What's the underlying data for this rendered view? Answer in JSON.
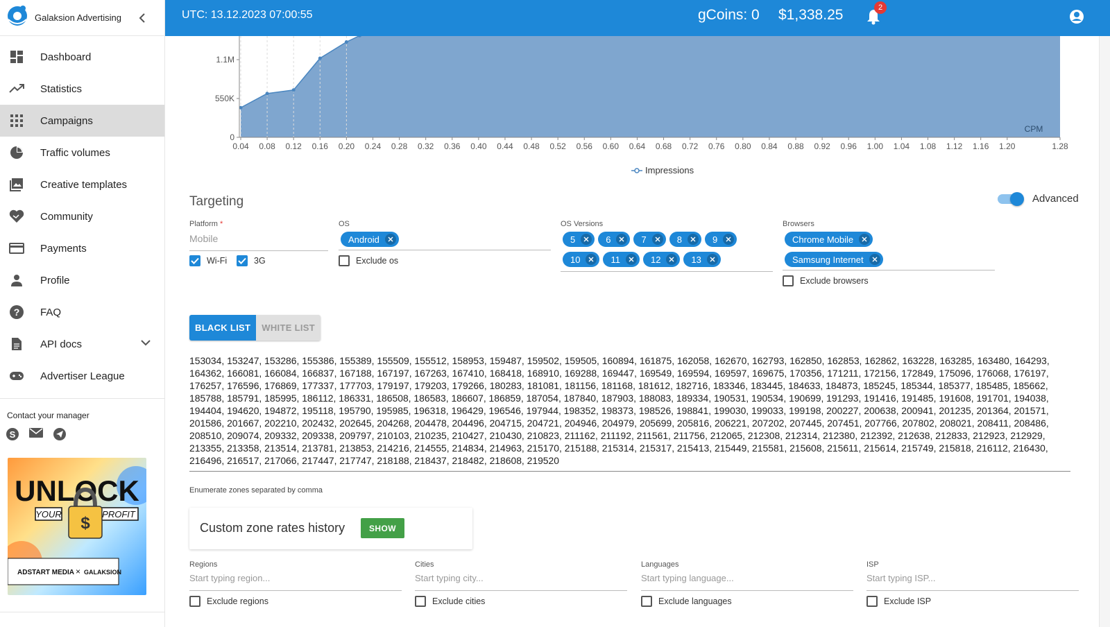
{
  "app": {
    "brand": "Galaksion Advertising"
  },
  "header": {
    "utc": "UTC: 13.12.2023 07:00:55",
    "coins": "gCoins: 0",
    "balance": "$1,338.25",
    "notifications": "2"
  },
  "nav": [
    {
      "label": "Dashboard",
      "icon": "dashboard-icon"
    },
    {
      "label": "Statistics",
      "icon": "trending-up-icon"
    },
    {
      "label": "Campaigns",
      "icon": "apps-grid-icon",
      "active": true
    },
    {
      "label": "Traffic volumes",
      "icon": "pie-chart-icon"
    },
    {
      "label": "Creative templates",
      "icon": "image-icon"
    },
    {
      "label": "Community",
      "icon": "handshake-icon"
    },
    {
      "label": "Payments",
      "icon": "credit-card-icon"
    },
    {
      "label": "Profile",
      "icon": "person-icon"
    },
    {
      "label": "FAQ",
      "icon": "help-icon"
    },
    {
      "label": "API docs",
      "icon": "document-icon"
    },
    {
      "label": "Advertiser League",
      "icon": "gamepad-icon"
    }
  ],
  "contact": {
    "title": "Contact your manager"
  },
  "banner": {
    "headline": "UNLOCK",
    "sub_left": "YOUR",
    "sub_right": "PROFIT",
    "partner1": "ADSTART MEDIA",
    "partner2": "GALAKSION"
  },
  "chart_data": {
    "type": "area",
    "x": [
      0.04,
      0.08,
      0.12,
      0.16,
      0.2,
      0.24,
      0.28,
      0.32,
      0.36,
      0.4,
      0.44,
      0.48,
      0.52,
      0.56,
      0.6,
      0.64,
      0.68,
      0.72,
      0.76,
      0.8,
      0.84,
      0.88,
      0.92,
      0.96,
      1.0,
      1.04,
      1.08,
      1.12,
      1.16,
      1.2,
      1.28
    ],
    "x_tick_labels": [
      "0.04",
      "0.08",
      "0.12",
      "0.16",
      "0.20",
      "0.24",
      "0.28",
      "0.32",
      "0.36",
      "0.40",
      "0.44",
      "0.48",
      "0.52",
      "0.56",
      "0.60",
      "0.64",
      "0.68",
      "0.72",
      "0.76",
      "0.80",
      "0.84",
      "0.88",
      "0.92",
      "0.96",
      "1.00",
      "1.04",
      "1.08",
      "1.12",
      "1.16",
      "1.20",
      "1.28"
    ],
    "y_tick_labels": [
      "0",
      "550K",
      "1.1M"
    ],
    "series": [
      {
        "name": "Impressions",
        "points": [
          [
            0.04,
            420000
          ],
          [
            0.08,
            620000
          ],
          [
            0.12,
            670000
          ],
          [
            0.16,
            1120000
          ],
          [
            0.2,
            1350000
          ],
          [
            0.22,
            1440000
          ]
        ]
      }
    ],
    "x_label": "CPM",
    "legend": "bottom-center",
    "grid": "dashed vertical lines"
  },
  "targeting": {
    "title": "Targeting",
    "advanced": "Advanced",
    "platform": {
      "label": "Platform",
      "required": "*",
      "value": "Mobile",
      "wifi": "Wi-Fi",
      "g3": "3G"
    },
    "os": {
      "label": "OS",
      "chips": [
        "Android"
      ],
      "exclude": "Exclude os"
    },
    "os_versions": {
      "label": "OS Versions",
      "row1": [
        "5",
        "6",
        "7",
        "8",
        "9"
      ],
      "row2": [
        "10",
        "11",
        "12",
        "13"
      ]
    },
    "browsers": {
      "label": "Browsers",
      "chips": [
        "Chrome Mobile",
        "Samsung Internet"
      ],
      "exclude": "Exclude browsers"
    },
    "list": {
      "black": "BLACK LIST",
      "white": "WHITE LIST"
    },
    "zones": "153034, 153247, 153286, 155386, 155389, 155509, 155512, 158953, 159487, 159502, 159505, 160894, 161875, 162058, 162670, 162793, 162850, 162853, 162862, 163228, 163285, 163480, 164293, 164362, 166081, 166084, 166837, 167188, 167197, 167263, 167410, 168418, 168910, 169288, 169447, 169549, 169594, 169597, 169675, 170356, 171211, 172156, 172849, 175096, 176068, 176197, 176257, 176596, 176869, 177337, 177703, 179197, 179203, 179266, 180283, 181081, 181156, 181168, 181612, 182716, 183346, 183445, 184633, 184873, 185245, 185344, 185377, 185485, 185662, 185788, 185791, 185995, 186112, 186331, 186508, 186583, 186607, 186859, 187054, 187840, 187903, 188083, 189334, 190531, 190534, 190699, 191293, 191416, 191485, 191608, 191701, 194038, 194404, 194620, 194872, 195118, 195790, 195985, 196318, 196429, 196546, 197944, 198352, 198373, 198526, 198841, 199030, 199033, 199198, 200227, 200638, 200941, 201235, 201364, 201571, 201586, 201667, 202210, 202432, 202645, 204268, 204478, 204496, 204715, 204721, 204946, 204979, 205699, 205816, 206221, 207202, 207445, 207451, 207766, 207802, 208021, 208411, 208486, 208510, 209074, 209332, 209338, 209797, 210103, 210235, 210427, 210430, 210823, 211162, 211192, 211561, 211756, 212065, 212308, 212314, 212380, 212392, 212638, 212833, 212923, 212929, 213355, 213358, 213514, 213781, 213853, 214216, 214555, 214834, 214963, 215170, 215188, 215314, 215317, 215413, 215449, 215581, 215608, 215611, 215614, 215749, 215818, 216112, 216430, 216496, 216517, 217066, 217447, 217747, 218188, 218437, 218482, 218608, 219520",
    "zones_hint": "Enumerate zones separated by comma",
    "custom_rates": {
      "title": "Custom zone rates history",
      "button": "SHOW"
    },
    "regions": {
      "label": "Regions",
      "placeholder": "Start typing region...",
      "exclude": "Exclude regions"
    },
    "cities": {
      "label": "Cities",
      "placeholder": "Start typing city...",
      "exclude": "Exclude cities"
    },
    "languages": {
      "label": "Languages",
      "placeholder": "Start typing language...",
      "exclude": "Exclude languages"
    },
    "isp": {
      "label": "ISP",
      "placeholder": "Start typing ISP...",
      "exclude": "Exclude ISP"
    }
  }
}
